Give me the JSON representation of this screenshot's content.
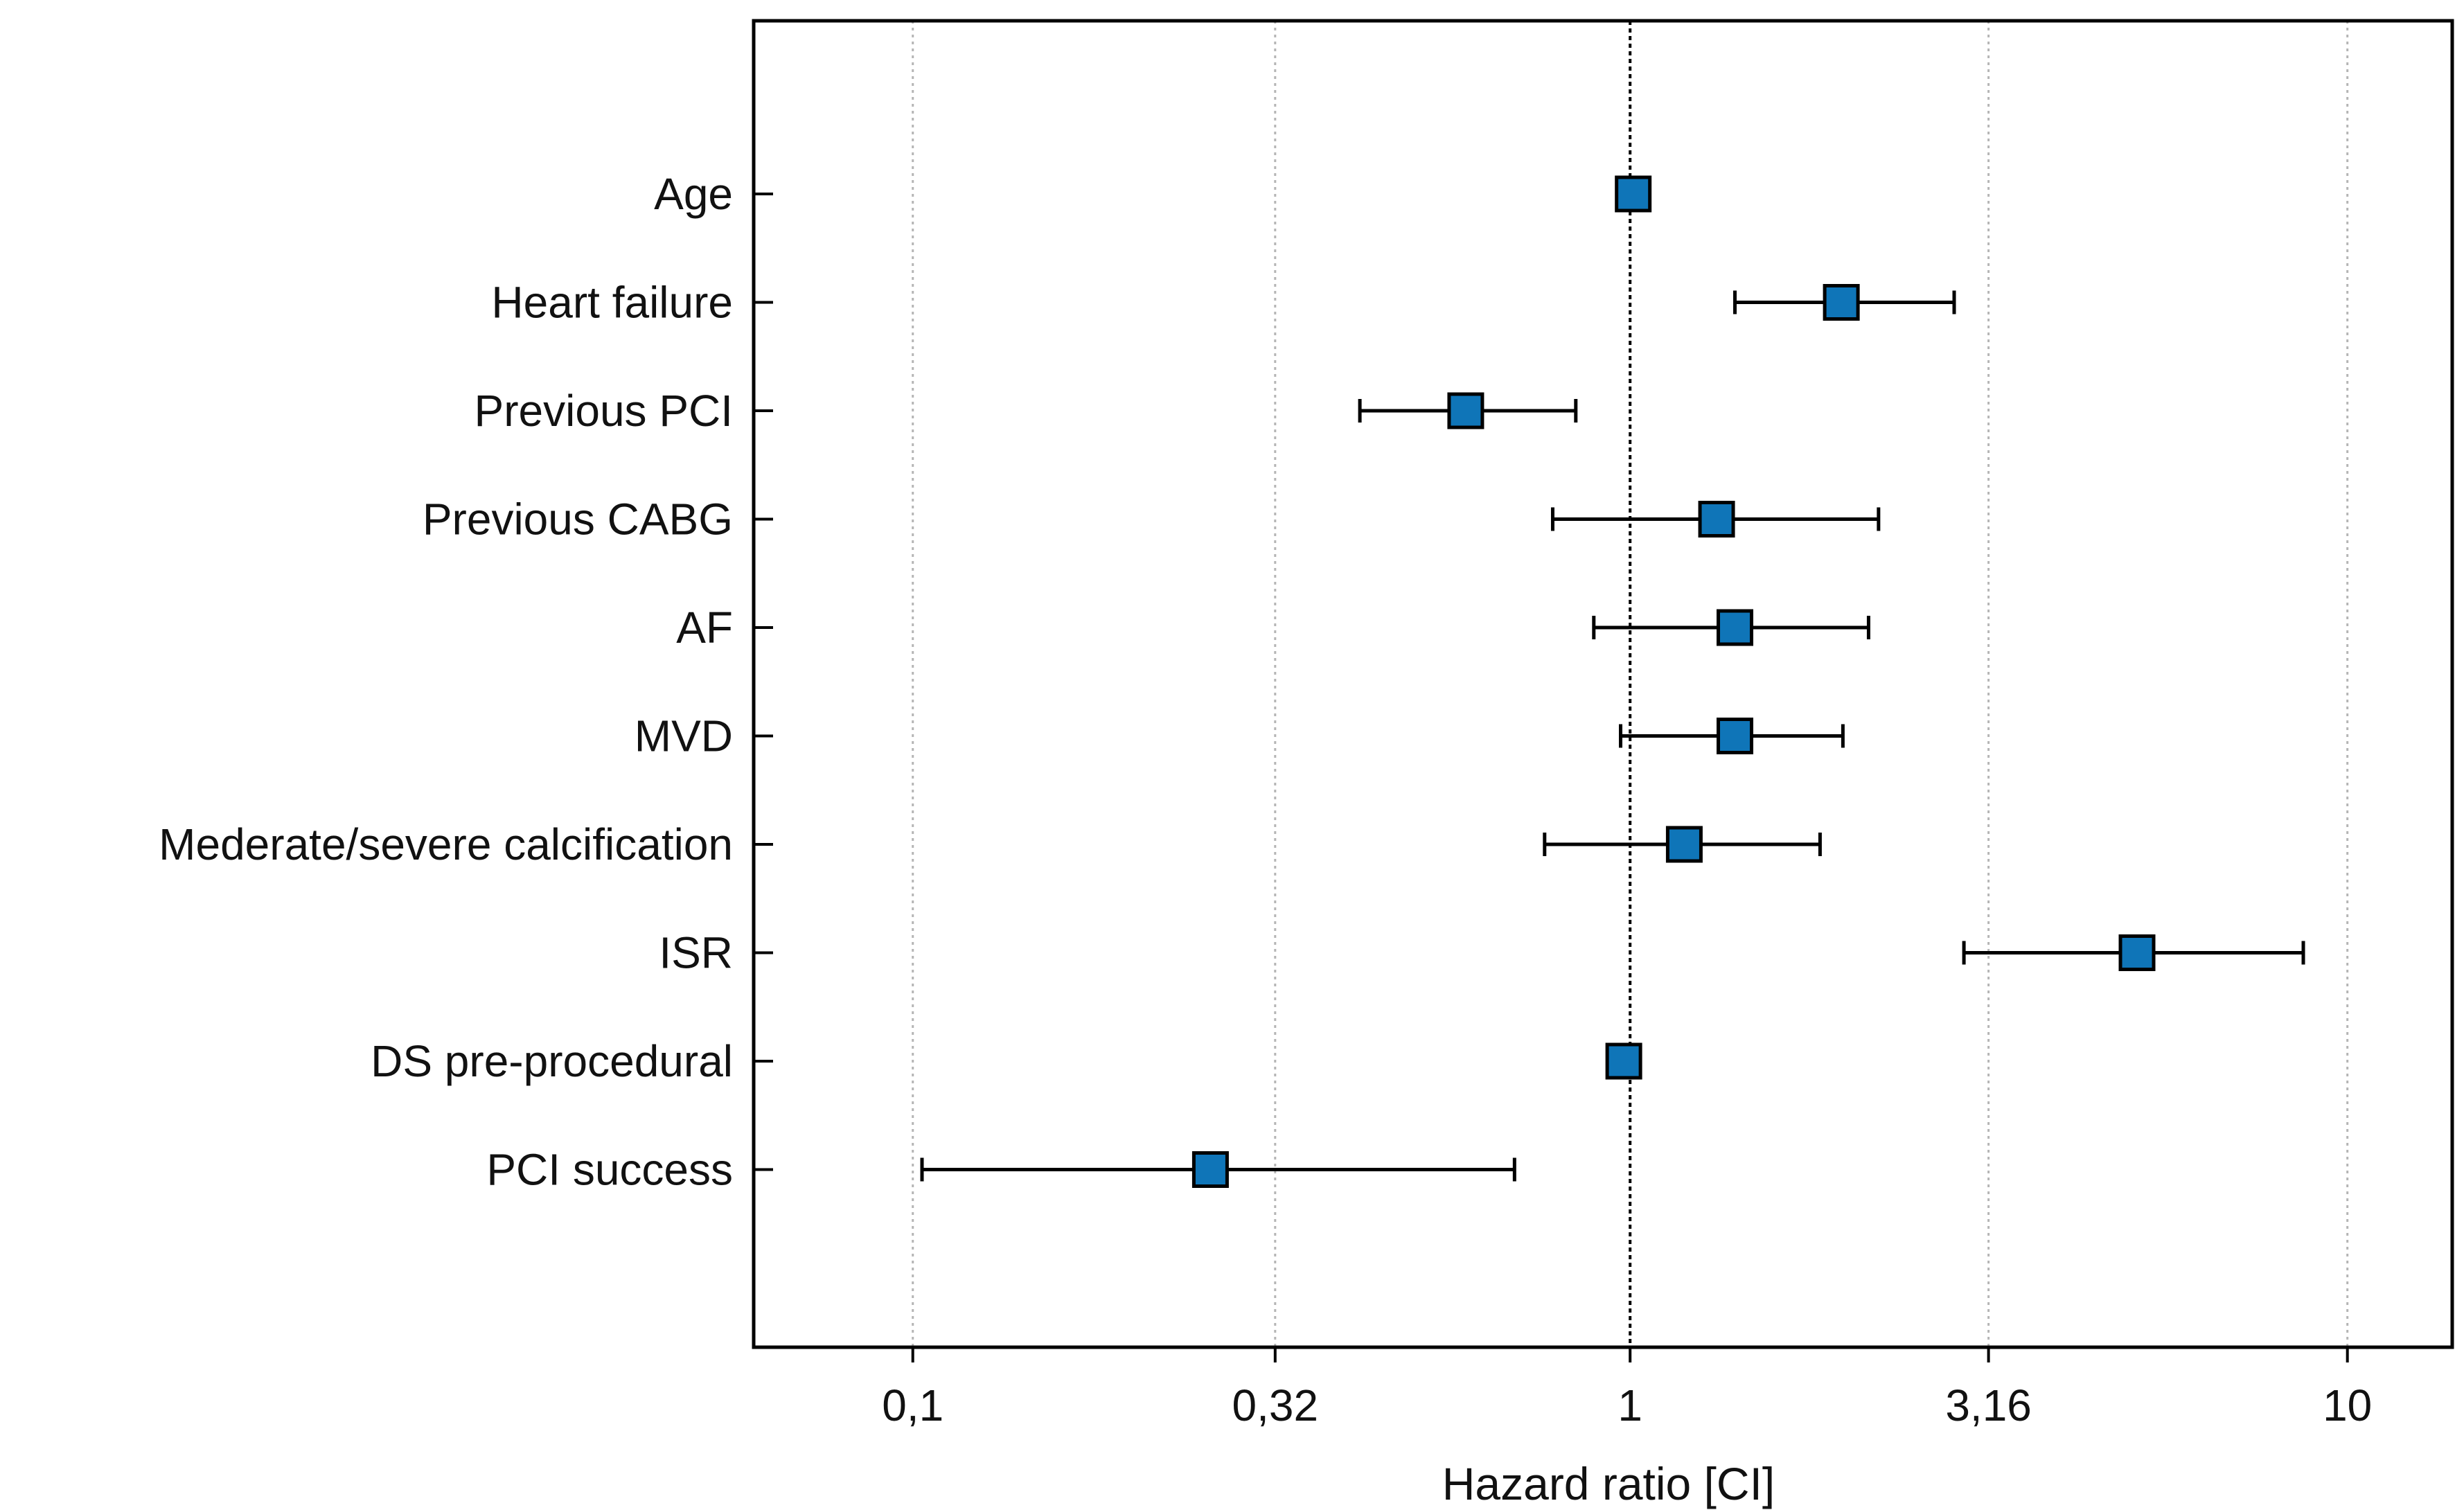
{
  "chart_data": {
    "type": "forest",
    "xlabel": "Hazard ratio [CI]",
    "x_scale": "log",
    "xlim": [
      0.06,
      14.0
    ],
    "x_ticks": [
      {
        "value": 0.1,
        "label": "0,1"
      },
      {
        "value": 0.32,
        "label": "0,32"
      },
      {
        "value": 1,
        "label": "1"
      },
      {
        "value": 3.16,
        "label": "3,16"
      },
      {
        "value": 10,
        "label": "10"
      }
    ],
    "reference_line": 1,
    "grid": "vertical-dotted",
    "marker_color": "#0F75B8",
    "rows": [
      {
        "label": "Age",
        "hr": 1.01,
        "lower": 1.0,
        "upper": 1.02
      },
      {
        "label": "Heart failure",
        "hr": 1.97,
        "lower": 1.4,
        "upper": 2.83
      },
      {
        "label": "Previous PCI",
        "hr": 0.59,
        "lower": 0.42,
        "upper": 0.84
      },
      {
        "label": "Previous CABG",
        "hr": 1.32,
        "lower": 0.78,
        "upper": 2.22
      },
      {
        "label": "AF",
        "hr": 1.4,
        "lower": 0.89,
        "upper": 2.15
      },
      {
        "label": "MVD",
        "hr": 1.4,
        "lower": 0.97,
        "upper": 1.98
      },
      {
        "label": "Mederate/severe calcification",
        "hr": 1.19,
        "lower": 0.76,
        "upper": 1.84
      },
      {
        "label": "ISR",
        "hr": 5.09,
        "lower": 2.92,
        "upper": 8.68
      },
      {
        "label": "DS pre-procedural",
        "hr": 0.98,
        "lower": 0.97,
        "upper": 0.99
      },
      {
        "label": "PCI success",
        "hr": 0.26,
        "lower": 0.103,
        "upper": 0.69
      }
    ]
  }
}
